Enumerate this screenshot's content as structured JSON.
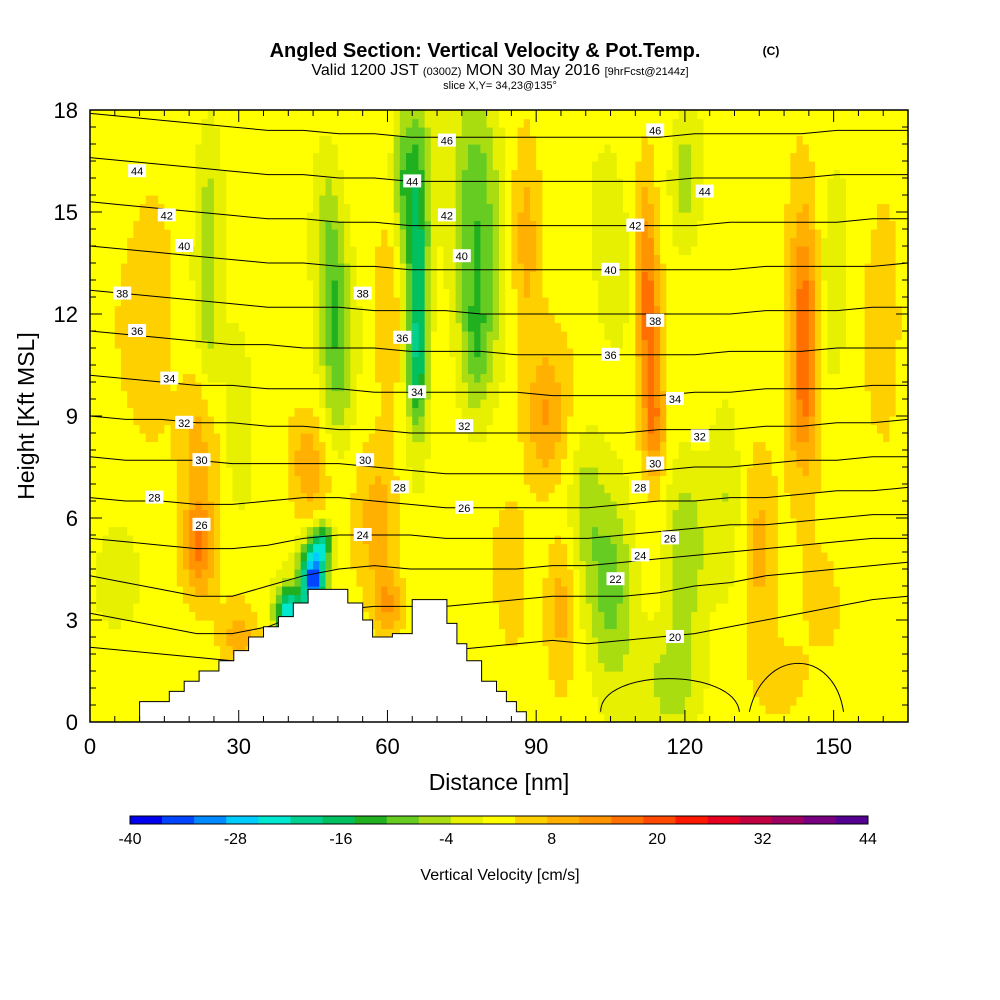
{
  "chart_data": {
    "type": "heatmap",
    "title": "Angled Section: Vertical Velocity & Pot.Temp.",
    "title_suffix": "(C)",
    "subtitle_a": "Valid 1200 JST",
    "subtitle_b": "(0300Z)",
    "subtitle_c": "MON 30 May 2016",
    "subtitle_d": "[9hrFcst@2144z]",
    "subtitle2": "slice X,Y= 34,23@135°",
    "xlabel": "Distance [nm]",
    "ylabel": "Height [Kft MSL]",
    "xlim": [
      0,
      165
    ],
    "ylim": [
      0,
      18
    ],
    "x_ticks": [
      "0",
      "30",
      "60",
      "90",
      "120",
      "150"
    ],
    "y_ticks": [
      "0",
      "3",
      "6",
      "9",
      "12",
      "15",
      "18"
    ],
    "colorbar": {
      "label": "Vertical Velocity [cm/s]",
      "tick_labels": [
        "-40",
        "-28",
        "-16",
        "-4",
        "8",
        "20",
        "32",
        "44"
      ],
      "colors": [
        "#0000ee",
        "#0044ff",
        "#0088ff",
        "#00ccff",
        "#00e8d0",
        "#00d090",
        "#00c060",
        "#20b020",
        "#66cc22",
        "#aadd11",
        "#e6f000",
        "#ffff00",
        "#ffd000",
        "#ffb000",
        "#ff9400",
        "#ff7000",
        "#ff4800",
        "#ff1800",
        "#e80020",
        "#c00040",
        "#9c0060",
        "#780080",
        "#540090"
      ]
    },
    "terrain": [
      [
        10,
        0.6
      ],
      [
        16,
        0.6
      ],
      [
        16,
        0.9
      ],
      [
        19,
        0.9
      ],
      [
        19,
        1.2
      ],
      [
        22,
        1.2
      ],
      [
        22,
        1.5
      ],
      [
        26,
        1.5
      ],
      [
        26,
        1.8
      ],
      [
        29,
        1.8
      ],
      [
        29,
        2.1
      ],
      [
        32,
        2.1
      ],
      [
        32,
        2.5
      ],
      [
        35,
        2.5
      ],
      [
        35,
        2.8
      ],
      [
        38,
        2.8
      ],
      [
        38,
        3.1
      ],
      [
        41,
        3.1
      ],
      [
        41,
        3.5
      ],
      [
        44,
        3.5
      ],
      [
        44,
        3.9
      ],
      [
        52,
        3.9
      ],
      [
        52,
        3.5
      ],
      [
        55,
        3.5
      ],
      [
        55,
        3.0
      ],
      [
        57,
        3.0
      ],
      [
        57,
        2.5
      ],
      [
        61,
        2.5
      ],
      [
        61,
        2.6
      ],
      [
        65,
        2.6
      ],
      [
        65,
        3.6
      ],
      [
        72,
        3.6
      ],
      [
        72,
        2.9
      ],
      [
        74,
        2.9
      ],
      [
        74,
        2.3
      ],
      [
        76,
        2.3
      ],
      [
        76,
        1.8
      ],
      [
        79,
        1.8
      ],
      [
        79,
        1.2
      ],
      [
        82,
        1.2
      ],
      [
        82,
        0.9
      ],
      [
        84,
        0.9
      ],
      [
        84,
        0.6
      ],
      [
        86,
        0.6
      ],
      [
        86,
        0.3
      ],
      [
        88,
        0.3
      ],
      [
        88,
        0
      ],
      [
        10,
        0
      ]
    ],
    "velocity_blobs": [
      {
        "x": 45,
        "z": 4.2,
        "rx": 2.5,
        "rz": 1.0,
        "w": -42
      },
      {
        "x": 40,
        "z": 3.2,
        "rx": 2.5,
        "rz": 0.8,
        "w": -30
      },
      {
        "x": 47,
        "z": 5.3,
        "rx": 2,
        "rz": 0.6,
        "w": -20
      },
      {
        "x": 22,
        "z": 5.2,
        "rx": 3,
        "rz": 1.5,
        "w": 14
      },
      {
        "x": 22,
        "z": 8.5,
        "rx": 4,
        "rz": 2,
        "w": 7
      },
      {
        "x": 12,
        "z": 12,
        "rx": 5,
        "rz": 4,
        "w": 5
      },
      {
        "x": 24,
        "z": 15,
        "rx": 3,
        "rz": 3,
        "w": -8
      },
      {
        "x": 24,
        "z": 11,
        "rx": 2,
        "rz": 2,
        "w": -5
      },
      {
        "x": 44,
        "z": 7.5,
        "rx": 4,
        "rz": 1.5,
        "w": 9
      },
      {
        "x": 30,
        "z": 9,
        "rx": 3,
        "rz": 2.5,
        "w": -6
      },
      {
        "x": 50,
        "z": 11,
        "rx": 3,
        "rz": 3,
        "w": -11
      },
      {
        "x": 48,
        "z": 14,
        "rx": 3,
        "rz": 3,
        "w": -9
      },
      {
        "x": 58,
        "z": 6,
        "rx": 4,
        "rz": 2,
        "w": 8
      },
      {
        "x": 60,
        "z": 12,
        "rx": 3,
        "rz": 3,
        "w": 5
      },
      {
        "x": 60,
        "z": 3.5,
        "rx": 3,
        "rz": 1,
        "w": 10
      },
      {
        "x": 66,
        "z": 14,
        "rx": 2.5,
        "rz": 4,
        "w": -20
      },
      {
        "x": 66,
        "z": 10.5,
        "rx": 2,
        "rz": 2,
        "w": -14
      },
      {
        "x": 63,
        "z": 16,
        "rx": 2,
        "rz": 2,
        "w": -10
      },
      {
        "x": 78,
        "z": 15,
        "rx": 5,
        "rz": 4,
        "w": -14
      },
      {
        "x": 78,
        "z": 11,
        "rx": 3,
        "rz": 2,
        "w": -9
      },
      {
        "x": 88,
        "z": 14,
        "rx": 3,
        "rz": 3,
        "w": 8
      },
      {
        "x": 92,
        "z": 9,
        "rx": 4,
        "rz": 2,
        "w": 10
      },
      {
        "x": 95,
        "z": 3.5,
        "rx": 3,
        "rz": 2,
        "w": 8
      },
      {
        "x": 85,
        "z": 4,
        "rx": 3,
        "rz": 2,
        "w": 5
      },
      {
        "x": 105,
        "z": 4,
        "rx": 5,
        "rz": 3,
        "w": -12
      },
      {
        "x": 100,
        "z": 6.5,
        "rx": 3,
        "rz": 2,
        "w": -6
      },
      {
        "x": 105,
        "z": 14,
        "rx": 4,
        "rz": 3,
        "w": -5
      },
      {
        "x": 113,
        "z": 11,
        "rx": 2.5,
        "rz": 2.5,
        "w": 17
      },
      {
        "x": 112,
        "z": 14,
        "rx": 2,
        "rz": 2,
        "w": 10
      },
      {
        "x": 114,
        "z": 8.5,
        "rx": 2,
        "rz": 1.5,
        "w": 9
      },
      {
        "x": 120,
        "z": 16,
        "rx": 3,
        "rz": 2,
        "w": -8
      },
      {
        "x": 120,
        "z": 5,
        "rx": 4,
        "rz": 2.5,
        "w": -10
      },
      {
        "x": 118,
        "z": 1.2,
        "rx": 6,
        "rz": 1.5,
        "w": -8
      },
      {
        "x": 128,
        "z": 7,
        "rx": 3,
        "rz": 3,
        "w": -5
      },
      {
        "x": 135,
        "z": 5,
        "rx": 3,
        "rz": 3,
        "w": 7
      },
      {
        "x": 144,
        "z": 12,
        "rx": 3,
        "rz": 3,
        "w": 17
      },
      {
        "x": 144,
        "z": 9,
        "rx": 3,
        "rz": 2,
        "w": 8
      },
      {
        "x": 150,
        "z": 13,
        "rx": 3,
        "rz": 3,
        "w": -6
      },
      {
        "x": 160,
        "z": 12,
        "rx": 3,
        "rz": 4,
        "w": 5
      },
      {
        "x": 148,
        "z": 3.5,
        "rx": 5,
        "rz": 2,
        "w": 3
      },
      {
        "x": 5,
        "z": 4,
        "rx": 5,
        "rz": 1.5,
        "w": -4
      },
      {
        "x": 30,
        "z": 2.5,
        "rx": 4,
        "rz": 1,
        "w": 8
      },
      {
        "x": 140,
        "z": 1.2,
        "rx": 5,
        "rz": 1.2,
        "w": 5
      }
    ],
    "isentropes": [
      {
        "theta": 20,
        "z": [
          2.2,
          2.1,
          2.0,
          1.9,
          1.8,
          1.8,
          1.9,
          1.9,
          1.9,
          2.0,
          2.1,
          2.2,
          2.3,
          2.4,
          2.3,
          2.4,
          2.5,
          2.6,
          2.8,
          3.0,
          3.2,
          3.4,
          3.6,
          3.7
        ]
      },
      {
        "theta": 22,
        "z": [
          3.2,
          3.0,
          2.8,
          2.6,
          2.6,
          2.8,
          3.2,
          3.3,
          3.4,
          3.4,
          3.4,
          3.5,
          3.6,
          3.7,
          3.7,
          3.7,
          3.8,
          4.0,
          4.1,
          4.3,
          4.4,
          4.5,
          4.6,
          4.7
        ]
      },
      {
        "theta": 24,
        "z": [
          4.3,
          4.1,
          3.9,
          3.7,
          3.7,
          4.0,
          4.3,
          4.5,
          4.6,
          4.5,
          4.5,
          4.5,
          4.5,
          4.6,
          4.6,
          4.7,
          4.8,
          4.9,
          5.0,
          5.1,
          5.2,
          5.3,
          5.4,
          5.4
        ]
      },
      {
        "theta": 26,
        "z": [
          5.4,
          5.3,
          5.2,
          5.1,
          5.1,
          5.2,
          5.4,
          5.5,
          5.5,
          5.5,
          5.4,
          5.4,
          5.4,
          5.4,
          5.4,
          5.5,
          5.6,
          5.7,
          5.8,
          5.8,
          5.9,
          6.0,
          6.1,
          6.1
        ]
      },
      {
        "theta": 28,
        "z": [
          6.6,
          6.5,
          6.5,
          6.4,
          6.4,
          6.5,
          6.6,
          6.6,
          6.5,
          6.4,
          6.3,
          6.3,
          6.3,
          6.3,
          6.3,
          6.4,
          6.5,
          6.5,
          6.6,
          6.6,
          6.7,
          6.8,
          6.8,
          6.9
        ]
      },
      {
        "theta": 30,
        "z": [
          7.8,
          7.7,
          7.7,
          7.7,
          7.6,
          7.6,
          7.6,
          7.6,
          7.5,
          7.4,
          7.3,
          7.3,
          7.3,
          7.3,
          7.3,
          7.3,
          7.4,
          7.5,
          7.5,
          7.6,
          7.7,
          7.7,
          7.8,
          7.8
        ]
      },
      {
        "theta": 32,
        "z": [
          9.0,
          8.9,
          8.9,
          8.8,
          8.8,
          8.7,
          8.7,
          8.6,
          8.6,
          8.5,
          8.5,
          8.5,
          8.5,
          8.5,
          8.5,
          8.5,
          8.6,
          8.6,
          8.6,
          8.7,
          8.7,
          8.8,
          8.8,
          8.9
        ]
      },
      {
        "theta": 34,
        "z": [
          10.2,
          10.1,
          10.0,
          9.9,
          9.9,
          9.8,
          9.8,
          9.8,
          9.7,
          9.7,
          9.7,
          9.7,
          9.7,
          9.6,
          9.6,
          9.6,
          9.6,
          9.7,
          9.7,
          9.8,
          9.8,
          9.8,
          9.9,
          9.9
        ]
      },
      {
        "theta": 36,
        "z": [
          11.5,
          11.4,
          11.3,
          11.2,
          11.1,
          11.1,
          11.0,
          11.0,
          11.0,
          10.9,
          10.9,
          10.9,
          10.8,
          10.8,
          10.8,
          10.8,
          10.8,
          10.8,
          10.9,
          10.9,
          10.9,
          11.0,
          11.0,
          11.0
        ]
      },
      {
        "theta": 38,
        "z": [
          12.7,
          12.6,
          12.5,
          12.4,
          12.3,
          12.2,
          12.2,
          12.2,
          12.1,
          12.1,
          12.1,
          12.0,
          12.0,
          12.0,
          12.0,
          12.0,
          12.0,
          12.0,
          12.0,
          12.1,
          12.1,
          12.1,
          12.2,
          12.2
        ]
      },
      {
        "theta": 40,
        "z": [
          14.0,
          13.9,
          13.8,
          13.7,
          13.6,
          13.5,
          13.5,
          13.4,
          13.4,
          13.3,
          13.3,
          13.3,
          13.3,
          13.3,
          13.3,
          13.3,
          13.3,
          13.3,
          13.3,
          13.4,
          13.4,
          13.4,
          13.4,
          13.5
        ]
      },
      {
        "theta": 42,
        "z": [
          15.3,
          15.2,
          15.1,
          15.0,
          14.9,
          14.8,
          14.8,
          14.7,
          14.7,
          14.6,
          14.6,
          14.6,
          14.6,
          14.6,
          14.6,
          14.6,
          14.6,
          14.6,
          14.7,
          14.7,
          14.7,
          14.7,
          14.8,
          14.8
        ]
      },
      {
        "theta": 44,
        "z": [
          16.6,
          16.5,
          16.4,
          16.3,
          16.2,
          16.1,
          16.1,
          16.0,
          16.0,
          15.9,
          15.9,
          15.9,
          15.9,
          15.9,
          15.9,
          15.9,
          15.9,
          16.0,
          16.0,
          16.0,
          16.0,
          16.1,
          16.1,
          16.1
        ]
      },
      {
        "theta": 46,
        "z": [
          17.9,
          17.8,
          17.7,
          17.6,
          17.5,
          17.4,
          17.4,
          17.3,
          17.3,
          17.2,
          17.2,
          17.2,
          17.2,
          17.2,
          17.2,
          17.2,
          17.2,
          17.3,
          17.3,
          17.3,
          17.3,
          17.4,
          17.4,
          17.4
        ]
      }
    ],
    "isentrope_labels": [
      {
        "text": "44",
        "x": 9.5,
        "z": 16.2
      },
      {
        "text": "42",
        "x": 15.5,
        "z": 14.9
      },
      {
        "text": "40",
        "x": 19,
        "z": 14.0
      },
      {
        "text": "38",
        "x": 6.5,
        "z": 12.6
      },
      {
        "text": "36",
        "x": 9.5,
        "z": 11.5
      },
      {
        "text": "34",
        "x": 16,
        "z": 10.1
      },
      {
        "text": "32",
        "x": 19,
        "z": 8.8
      },
      {
        "text": "30",
        "x": 22.5,
        "z": 7.7
      },
      {
        "text": "28",
        "x": 13,
        "z": 6.6
      },
      {
        "text": "26",
        "x": 22.5,
        "z": 5.8
      },
      {
        "text": "46",
        "x": 72,
        "z": 17.1
      },
      {
        "text": "44",
        "x": 65,
        "z": 15.9
      },
      {
        "text": "42",
        "x": 72,
        "z": 14.9
      },
      {
        "text": "40",
        "x": 75,
        "z": 13.7
      },
      {
        "text": "38",
        "x": 55,
        "z": 12.6
      },
      {
        "text": "36",
        "x": 63,
        "z": 11.3
      },
      {
        "text": "34",
        "x": 66,
        "z": 9.7
      },
      {
        "text": "32",
        "x": 75.5,
        "z": 8.7
      },
      {
        "text": "30",
        "x": 55.5,
        "z": 7.7
      },
      {
        "text": "28",
        "x": 62.5,
        "z": 6.9
      },
      {
        "text": "26",
        "x": 75.5,
        "z": 6.3
      },
      {
        "text": "24",
        "x": 55,
        "z": 5.5
      },
      {
        "text": "46",
        "x": 114,
        "z": 17.4
      },
      {
        "text": "44",
        "x": 124,
        "z": 15.6
      },
      {
        "text": "42",
        "x": 110,
        "z": 14.6
      },
      {
        "text": "40",
        "x": 105,
        "z": 13.3
      },
      {
        "text": "38",
        "x": 114,
        "z": 11.8
      },
      {
        "text": "36",
        "x": 105,
        "z": 10.8
      },
      {
        "text": "34",
        "x": 118,
        "z": 9.5
      },
      {
        "text": "32",
        "x": 123,
        "z": 8.4
      },
      {
        "text": "30",
        "x": 114,
        "z": 7.6
      },
      {
        "text": "28",
        "x": 111,
        "z": 6.9
      },
      {
        "text": "26",
        "x": 117,
        "z": 5.4
      },
      {
        "text": "24",
        "x": 111,
        "z": 4.9
      },
      {
        "text": "22",
        "x": 106,
        "z": 4.2
      },
      {
        "text": "20",
        "x": 118,
        "z": 2.5
      }
    ]
  }
}
